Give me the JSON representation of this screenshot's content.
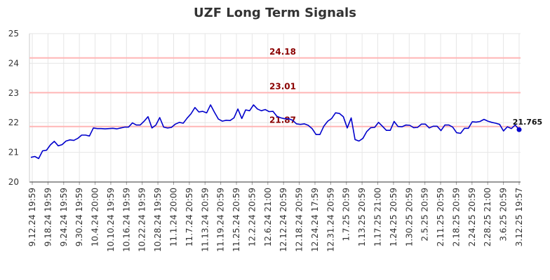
{
  "chart_data": {
    "type": "line",
    "title": "UZF Long Term Signals",
    "xlabel": "",
    "ylabel": "",
    "ylim": [
      20,
      25
    ],
    "yticks": [
      20,
      21,
      22,
      23,
      24,
      25
    ],
    "grid": true,
    "legend": "none",
    "colors": {
      "line": "#0000cc",
      "ref_line": "#ffb6b6",
      "ref_label": "#8b0000",
      "grid": "#e6e6e6"
    },
    "x_tick_labels": [
      "9.12.24 19:59",
      "9.18.24 19:59",
      "9.24.24 19:59",
      "9.30.24 19:59",
      "10.4.24 20:00",
      "10.10.24 19:59",
      "10.16.24 19:59",
      "10.22.24 19:59",
      "10.28.24 19:59",
      "11.1.24 20:00",
      "11.7.24 20:59",
      "11.13.24 20:59",
      "11.19.24 20:59",
      "11.25.24 20:59",
      "12.2.24 20:59",
      "12.6.24 21:00",
      "12.12.24 20:59",
      "12.18.24 20:59",
      "12.24.24 17:59",
      "12.31.24 20:59",
      "1.7.25 20:59",
      "1.13.25 20:59",
      "1.17.25 21:00",
      "1.24.25 20:59",
      "1.30.25 20:59",
      "2.5.25 20:59",
      "2.11.25 20:59",
      "2.18.25 20:59",
      "2.24.25 20:59",
      "2.28.25 21:00",
      "3.6.25 20:59",
      "3.12.25 19:57"
    ],
    "reference_lines": [
      {
        "value": 24.18,
        "label": "24.18"
      },
      {
        "value": 23.01,
        "label": "23.01"
      },
      {
        "value": 21.87,
        "label": "21.87"
      }
    ],
    "values": [
      20.83,
      20.86,
      20.79,
      21.05,
      21.07,
      21.25,
      21.37,
      21.22,
      21.26,
      21.38,
      21.42,
      21.4,
      21.47,
      21.58,
      21.58,
      21.55,
      21.82,
      21.8,
      21.8,
      21.79,
      21.8,
      21.81,
      21.79,
      21.82,
      21.85,
      21.85,
      21.99,
      21.92,
      21.92,
      22.05,
      22.2,
      21.82,
      21.92,
      22.17,
      21.85,
      21.82,
      21.84,
      21.95,
      22.01,
      21.98,
      22.15,
      22.3,
      22.51,
      22.36,
      22.38,
      22.33,
      22.6,
      22.35,
      22.12,
      22.05,
      22.08,
      22.07,
      22.16,
      22.46,
      22.14,
      22.43,
      22.4,
      22.6,
      22.46,
      22.4,
      22.44,
      22.37,
      22.38,
      22.21,
      22.16,
      22.13,
      22.13,
      22.08,
      21.96,
      21.94,
      21.96,
      21.91,
      21.8,
      21.6,
      21.6,
      21.88,
      22.05,
      22.14,
      22.33,
      22.31,
      22.2,
      21.82,
      22.16,
      21.43,
      21.38,
      21.47,
      21.7,
      21.83,
      21.84,
      22.01,
      21.88,
      21.74,
      21.74,
      22.04,
      21.87,
      21.86,
      21.92,
      21.91,
      21.83,
      21.84,
      21.95,
      21.95,
      21.82,
      21.88,
      21.88,
      21.73,
      21.92,
      21.92,
      21.85,
      21.66,
      21.64,
      21.81,
      21.81,
      22.03,
      22.02,
      22.04,
      22.11,
      22.05,
      22.01,
      21.98,
      21.94,
      21.72,
      21.86,
      21.8,
      21.92,
      21.765
    ],
    "last_value_label": "21.765"
  }
}
